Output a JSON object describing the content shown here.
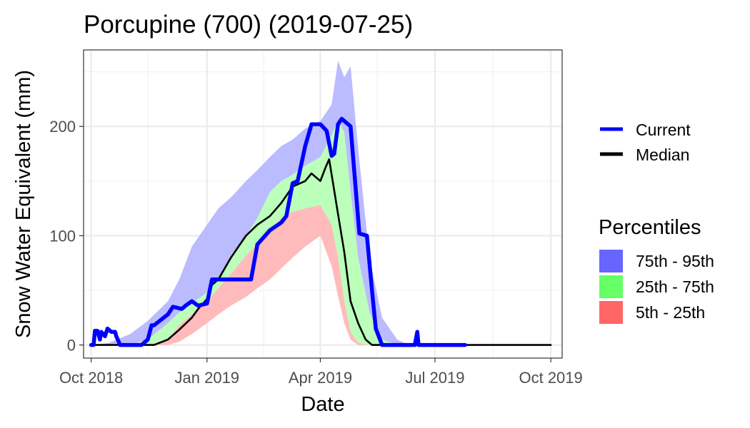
{
  "chart_data": {
    "type": "area",
    "title": "Porcupine (700) (2019-07-25)",
    "xlabel": "Date",
    "ylabel": "Snow Water Equivalent (mm)",
    "xlim": [
      "2018-09-25",
      "2019-10-10"
    ],
    "ylim": [
      -12,
      270
    ],
    "x_ticks": [
      {
        "date": "2018-10-01",
        "label": "Oct 2018"
      },
      {
        "date": "2019-01-01",
        "label": "Jan 2019"
      },
      {
        "date": "2019-04-01",
        "label": "Apr 2019"
      },
      {
        "date": "2019-07-01",
        "label": "Jul 2019"
      },
      {
        "date": "2019-10-01",
        "label": "Oct 2019"
      }
    ],
    "x_minor_ticks": [
      "2018-11-15",
      "2019-02-15",
      "2019-05-16",
      "2019-08-16"
    ],
    "y_ticks": [
      0,
      100,
      200
    ],
    "y_minor_ticks": [
      50,
      150,
      250
    ],
    "grid": true,
    "legend_position": "right",
    "legend": {
      "lines_title": "",
      "lines": [
        {
          "name": "Current",
          "color": "#0000ff"
        },
        {
          "name": "Median",
          "color": "#000000"
        }
      ],
      "bands_title": "Percentiles",
      "bands": [
        {
          "name": "75th - 95th",
          "color": "#6666ff"
        },
        {
          "name": "25th - 75th",
          "color": "#66ff66"
        },
        {
          "name": "5th - 25th",
          "color": "#ff6666"
        }
      ]
    },
    "percentile_dates": [
      "2018-10-01",
      "2018-10-15",
      "2018-11-01",
      "2018-11-15",
      "2018-12-01",
      "2018-12-10",
      "2018-12-20",
      "2019-01-01",
      "2019-01-10",
      "2019-01-20",
      "2019-02-01",
      "2019-02-10",
      "2019-02-20",
      "2019-03-01",
      "2019-03-10",
      "2019-03-20",
      "2019-04-01",
      "2019-04-10",
      "2019-04-15",
      "2019-04-20",
      "2019-04-25",
      "2019-05-01",
      "2019-05-10",
      "2019-05-20",
      "2019-06-01",
      "2019-06-10",
      "2019-06-15"
    ],
    "p5": [
      0,
      0,
      0,
      0,
      0,
      3,
      10,
      20,
      28,
      36,
      44,
      52,
      60,
      70,
      80,
      90,
      100,
      72,
      45,
      20,
      5,
      0,
      0,
      0,
      0,
      0,
      0
    ],
    "p25": [
      0,
      0,
      0,
      0,
      5,
      18,
      28,
      40,
      52,
      65,
      82,
      92,
      106,
      116,
      122,
      125,
      128,
      110,
      80,
      40,
      12,
      2,
      0,
      0,
      0,
      0,
      0
    ],
    "p75": [
      0,
      0,
      0,
      5,
      20,
      30,
      38,
      48,
      60,
      82,
      100,
      116,
      140,
      150,
      156,
      164,
      172,
      192,
      205,
      195,
      140,
      80,
      30,
      5,
      0,
      0,
      0
    ],
    "p95": [
      0,
      2,
      10,
      22,
      40,
      60,
      90,
      110,
      125,
      135,
      150,
      160,
      172,
      182,
      188,
      198,
      205,
      220,
      260,
      245,
      255,
      180,
      80,
      25,
      5,
      0,
      0
    ],
    "series": [
      {
        "name": "Current",
        "x": [
          "2018-10-01",
          "2018-10-03",
          "2018-10-04",
          "2018-10-06",
          "2018-10-08",
          "2018-10-09",
          "2018-10-12",
          "2018-10-14",
          "2018-10-17",
          "2018-10-20",
          "2018-10-21",
          "2018-10-24",
          "2018-11-10",
          "2018-11-15",
          "2018-11-18",
          "2018-11-20",
          "2018-12-01",
          "2018-12-05",
          "2018-12-12",
          "2018-12-15",
          "2018-12-20",
          "2018-12-25",
          "2019-01-01",
          "2019-01-05",
          "2019-01-10",
          "2019-02-05",
          "2019-02-10",
          "2019-02-20",
          "2019-03-01",
          "2019-03-05",
          "2019-03-10",
          "2019-03-14",
          "2019-03-20",
          "2019-03-25",
          "2019-04-01",
          "2019-04-06",
          "2019-04-10",
          "2019-04-12",
          "2019-04-15",
          "2019-04-18",
          "2019-04-25",
          "2019-05-02",
          "2019-05-08",
          "2019-05-12",
          "2019-05-15",
          "2019-05-20",
          "2019-05-25",
          "2019-06-15",
          "2019-06-17",
          "2019-06-18",
          "2019-06-20",
          "2019-07-25"
        ],
        "values": [
          0,
          0,
          13,
          13,
          5,
          12,
          8,
          15,
          12,
          12,
          8,
          0,
          0,
          5,
          18,
          18,
          28,
          35,
          33,
          36,
          40,
          36,
          38,
          60,
          60,
          60,
          92,
          105,
          112,
          118,
          148,
          150,
          182,
          202,
          202,
          196,
          173,
          175,
          202,
          207,
          200,
          102,
          100,
          50,
          15,
          0,
          0,
          0,
          12,
          0,
          0,
          0
        ]
      },
      {
        "name": "Median",
        "x": [
          "2018-10-01",
          "2018-11-01",
          "2018-11-20",
          "2018-12-01",
          "2018-12-10",
          "2018-12-20",
          "2018-12-25",
          "2019-01-01",
          "2019-01-05",
          "2019-01-10",
          "2019-01-20",
          "2019-02-01",
          "2019-02-10",
          "2019-02-20",
          "2019-03-01",
          "2019-03-10",
          "2019-03-20",
          "2019-03-25",
          "2019-04-01",
          "2019-04-05",
          "2019-04-08",
          "2019-04-15",
          "2019-04-20",
          "2019-04-25",
          "2019-05-01",
          "2019-05-07",
          "2019-05-12",
          "2019-05-20",
          "2019-10-01"
        ],
        "values": [
          0,
          0,
          0,
          5,
          14,
          25,
          33,
          42,
          55,
          60,
          80,
          100,
          110,
          118,
          130,
          145,
          150,
          157,
          150,
          162,
          170,
          120,
          85,
          40,
          20,
          5,
          0,
          0,
          0
        ]
      }
    ]
  }
}
